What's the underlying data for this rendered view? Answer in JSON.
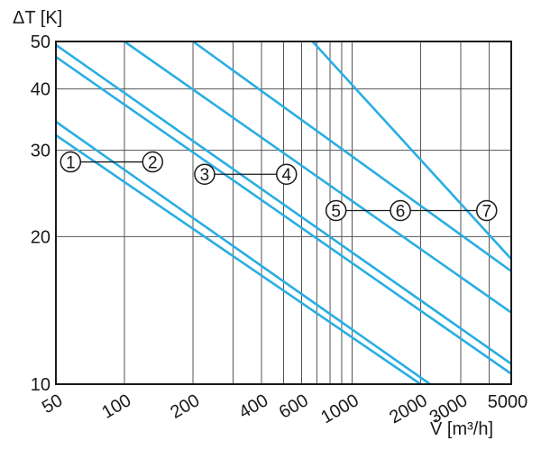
{
  "chart_data": {
    "type": "line",
    "title": "",
    "xlabel": "V̇ [m³/h]",
    "ylabel": "ΔT [K]",
    "x_scale": "log",
    "y_scale": "log",
    "xlim": [
      50,
      5000
    ],
    "ylim": [
      10,
      50
    ],
    "grid": true,
    "x_gridlines": [
      100,
      200,
      300,
      400,
      500,
      600,
      700,
      800,
      900,
      1000,
      2000,
      3000,
      4000,
      5000
    ],
    "y_gridlines": [
      20,
      30,
      40
    ],
    "x_ticks": [
      {
        "v": 50,
        "label": "50"
      },
      {
        "v": 100,
        "label": "100"
      },
      {
        "v": 200,
        "label": "200"
      },
      {
        "v": 400,
        "label": "400"
      },
      {
        "v": 600,
        "label": "600"
      },
      {
        "v": 1000,
        "label": "1000"
      },
      {
        "v": 2000,
        "label": "2000"
      },
      {
        "v": 3000,
        "label": "3000"
      },
      {
        "v": 5000,
        "label": "5000"
      }
    ],
    "y_ticks": [
      {
        "v": 50,
        "label": "50"
      },
      {
        "v": 40,
        "label": "40"
      },
      {
        "v": 30,
        "label": "30"
      },
      {
        "v": 20,
        "label": "20"
      },
      {
        "v": 10,
        "label": "10"
      }
    ],
    "line_color": "#29aee3",
    "series": [
      {
        "name": "1",
        "points": [
          [
            50,
            32.2
          ],
          [
            2000,
            10
          ]
        ],
        "marker_x": 58,
        "marker_y": 28.4
      },
      {
        "name": "2",
        "points": [
          [
            50,
            34.3
          ],
          [
            2200,
            10
          ]
        ],
        "marker_x": 133,
        "marker_y": 28.4
      },
      {
        "name": "3",
        "points": [
          [
            50,
            46.5
          ],
          [
            5000,
            10.5
          ]
        ],
        "marker_x": 225,
        "marker_y": 26.8
      },
      {
        "name": "4",
        "points": [
          [
            50,
            49.2
          ],
          [
            5000,
            11.0
          ]
        ],
        "marker_x": 515,
        "marker_y": 26.8
      },
      {
        "name": "5",
        "points": [
          [
            100,
            50
          ],
          [
            5000,
            14.0
          ]
        ],
        "marker_x": 850,
        "marker_y": 22.6
      },
      {
        "name": "6",
        "points": [
          [
            200,
            50
          ],
          [
            5000,
            17.0
          ]
        ],
        "marker_x": 1630,
        "marker_y": 22.6
      },
      {
        "name": "7",
        "points": [
          [
            670,
            50
          ],
          [
            5000,
            18.0
          ]
        ],
        "marker_x": 3900,
        "marker_y": 22.6
      }
    ],
    "label_pairs": [
      [
        "1",
        "2"
      ],
      [
        "3",
        "4"
      ],
      [
        "5",
        "6",
        "7"
      ]
    ]
  }
}
